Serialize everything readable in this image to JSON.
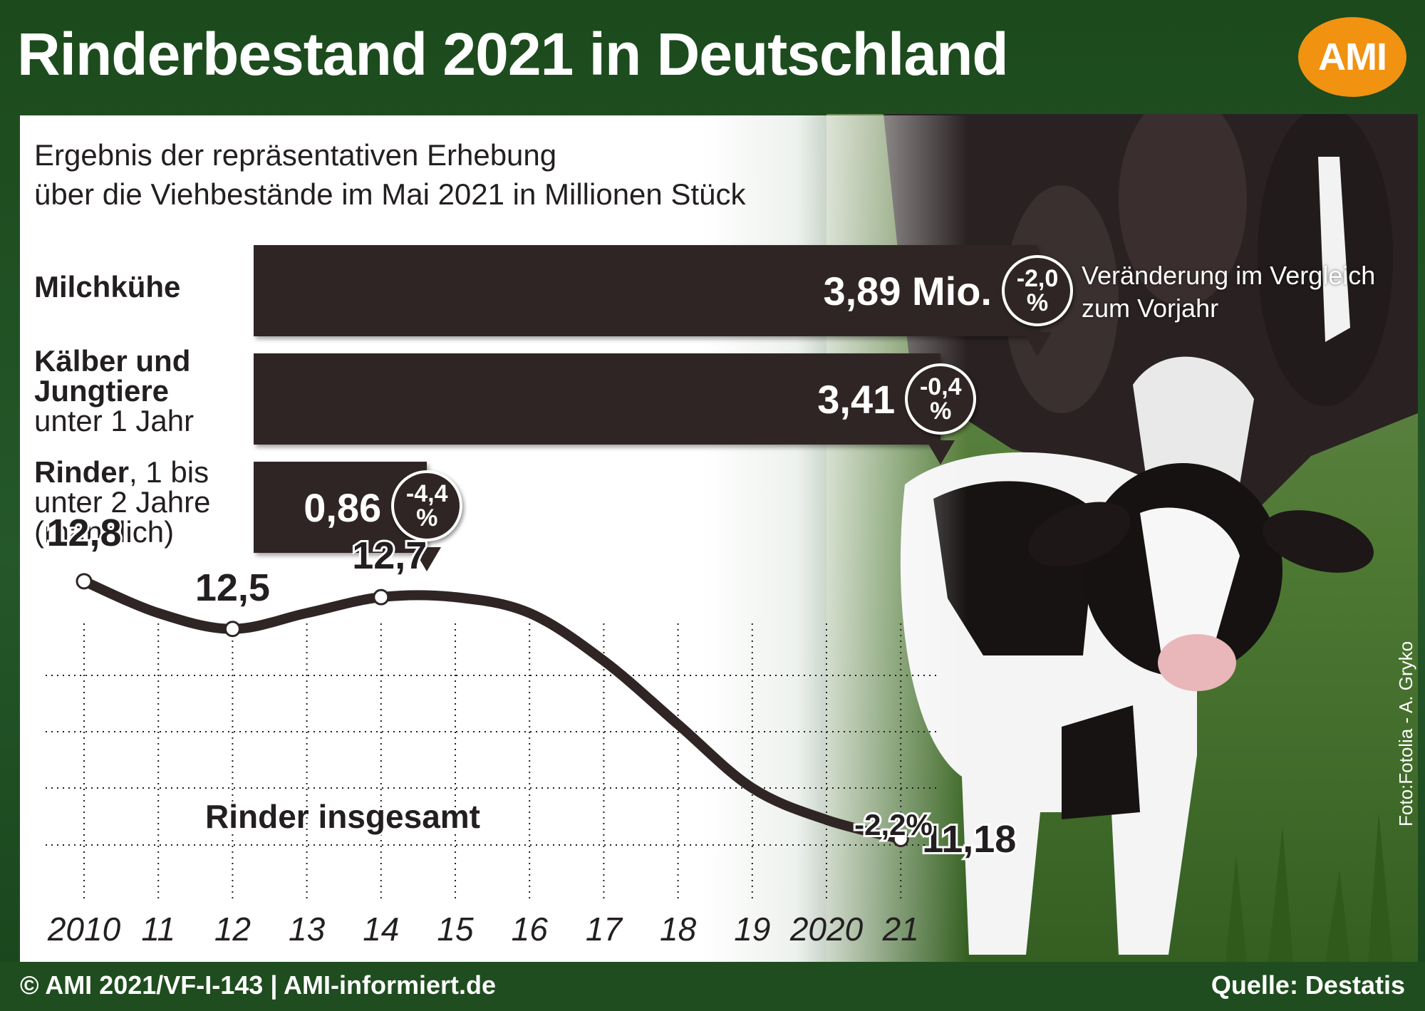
{
  "header": {
    "title": "Rinderbestand 2021 in Deutschland",
    "logo_text": "AMI",
    "logo_color": "#f19211",
    "background_color": "#1f4d1f"
  },
  "subtitle": {
    "line1": "Ergebnis der repräsentativen Erhebung",
    "line2": "über die Viehbestände im Mai 2021 in Millionen Stück"
  },
  "change_note": {
    "line1": "Veränderung im Vergleich",
    "line2": "zum Vorjahr"
  },
  "chart_data": [
    {
      "type": "bar",
      "orientation": "horizontal",
      "unit": "Millionen Stück",
      "bar_color": "#2f2524",
      "xlim": [
        0,
        3.89
      ],
      "categories": [
        {
          "bold": "Milchkühe",
          "rest": "",
          "line2_bold": "",
          "line3": "",
          "line4": ""
        },
        {
          "bold": "Kälber und",
          "rest": "",
          "line2_bold": "Jungtiere",
          "line3": "unter 1 Jahr",
          "line4": ""
        },
        {
          "bold": "Rinder",
          "rest": ", 1 bis",
          "line2_bold": "",
          "line3": "unter 2 Jahre",
          "line4": "(männlich)"
        }
      ],
      "values": [
        3.89,
        3.41,
        0.86
      ],
      "value_labels": [
        "3,89 Mio.",
        "3,41",
        "0,86"
      ],
      "changes": [
        {
          "value": -2.0,
          "top": "-2,0",
          "unit": "%"
        },
        {
          "value": -0.4,
          "top": "-0,4",
          "unit": "%"
        },
        {
          "value": -4.4,
          "top": "-4,4",
          "unit": "%"
        }
      ]
    },
    {
      "type": "line",
      "series": [
        {
          "name": "Rinder insgesamt",
          "color": "#2f2524",
          "x": [
            2010,
            2011,
            2012,
            2013,
            2014,
            2015,
            2016,
            2017,
            2018,
            2019,
            2020,
            2021
          ],
          "values": [
            12.8,
            12.6,
            12.5,
            12.6,
            12.7,
            12.7,
            12.6,
            12.3,
            11.9,
            11.5,
            11.3,
            11.18
          ]
        }
      ],
      "x_tick_labels": [
        "2010",
        "11",
        "12",
        "13",
        "14",
        "15",
        "16",
        "17",
        "18",
        "19",
        "2020",
        "21"
      ],
      "ylim": [
        10.9,
        13.05
      ],
      "grid": true,
      "grid_color": "#231f20",
      "grid_style": "dotted",
      "data_labels": [
        {
          "index": 0,
          "text": "12,8"
        },
        {
          "index": 2,
          "text": "12,5"
        },
        {
          "index": 4,
          "text": "12,7"
        },
        {
          "index": 11,
          "text": "11,18"
        }
      ],
      "annotations": [
        {
          "text": "Rinder insgesamt"
        },
        {
          "text": "-2,2%"
        }
      ]
    }
  ],
  "footer": {
    "left": "© AMI 2021/VF-I-143 | AMI-informiert.de",
    "right": "Quelle: Destatis"
  },
  "photo_credit": "Foto:Fotolia - A. Gryko"
}
